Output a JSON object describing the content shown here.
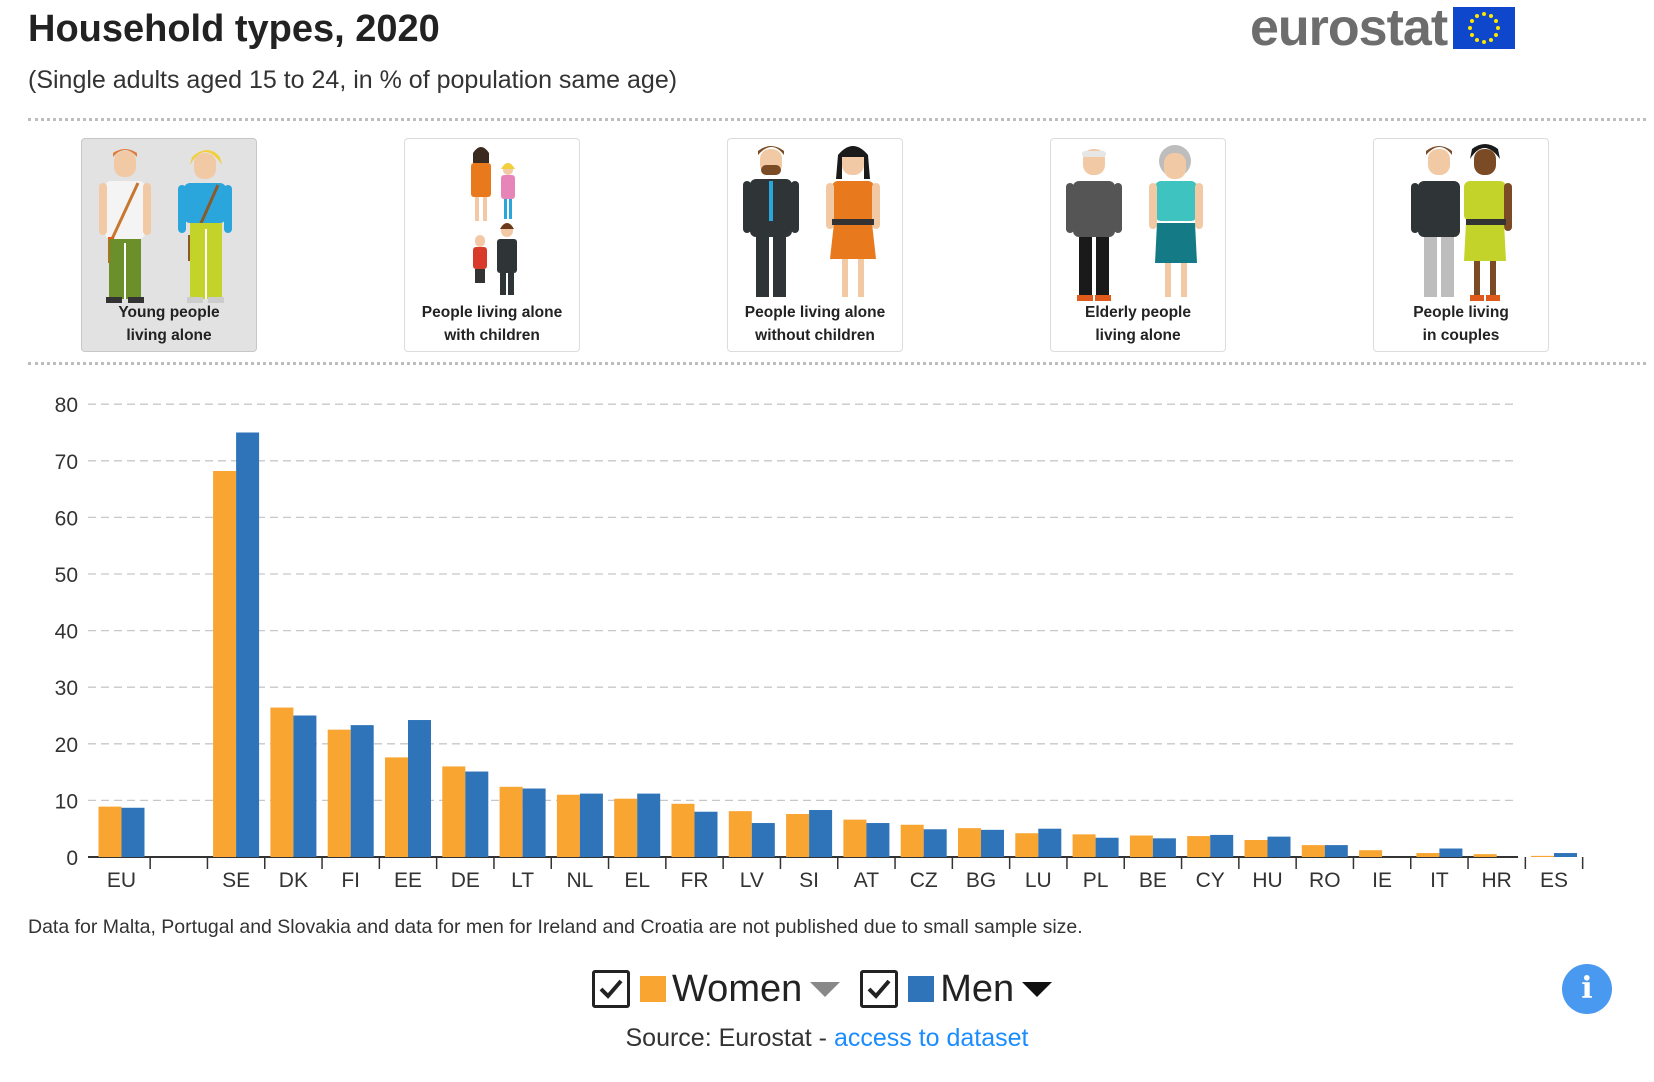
{
  "header": {
    "title": "Household types, 2020",
    "subtitle": "(Single adults aged 15 to 24, in % of population same age)",
    "logo_text": "eurostat"
  },
  "cards": [
    {
      "line1": "Young people",
      "line2": "living alone",
      "selected": true,
      "icon": "young-people-icon"
    },
    {
      "line1": "People living alone",
      "line2": "with children",
      "selected": false,
      "icon": "family-icon"
    },
    {
      "line1": "People living alone",
      "line2": "without children",
      "selected": false,
      "icon": "adults-icon"
    },
    {
      "line1": "Elderly people",
      "line2": "living alone",
      "selected": false,
      "icon": "elderly-icon"
    },
    {
      "line1": "People living",
      "line2": "in couples",
      "selected": false,
      "icon": "couple-icon"
    }
  ],
  "chart_data": {
    "type": "bar",
    "categories": [
      "EU",
      "",
      "SE",
      "DK",
      "FI",
      "EE",
      "DE",
      "LT",
      "NL",
      "EL",
      "FR",
      "LV",
      "SI",
      "AT",
      "CZ",
      "BG",
      "LU",
      "PL",
      "BE",
      "CY",
      "HU",
      "RO",
      "IE",
      "IT",
      "HR",
      "ES"
    ],
    "series": [
      {
        "name": "Women",
        "color": "#f8a532",
        "values": [
          8.9,
          null,
          68.2,
          26.4,
          22.5,
          17.6,
          16.0,
          12.4,
          11.0,
          10.3,
          9.4,
          8.1,
          7.6,
          6.6,
          5.7,
          5.1,
          4.2,
          4.0,
          3.8,
          3.7,
          3.0,
          2.1,
          1.2,
          0.7,
          0.5,
          0.2
        ]
      },
      {
        "name": "Men",
        "color": "#2f73b9",
        "values": [
          8.7,
          null,
          75.0,
          25.0,
          23.3,
          24.2,
          15.1,
          12.1,
          11.2,
          11.2,
          8.0,
          6.0,
          8.3,
          6.0,
          4.9,
          4.8,
          5.0,
          3.4,
          3.3,
          3.9,
          3.6,
          2.1,
          null,
          1.5,
          null,
          0.7
        ]
      }
    ],
    "yticks": [
      0,
      10,
      20,
      30,
      40,
      50,
      60,
      70,
      80
    ],
    "ylim": [
      0,
      80
    ],
    "grid": true
  },
  "footnote": "Data for Malta, Portugal and Slovakia and data for men for Ireland and Croatia are not published due to small sample size.",
  "legend": [
    {
      "label": "Women",
      "color": "#f8a532",
      "checked": true
    },
    {
      "label": "Men",
      "color": "#2f73b9",
      "checked": true
    }
  ],
  "source": {
    "prefix": "Source: Eurostat - ",
    "link_text": "access to dataset"
  },
  "info_button": "i"
}
